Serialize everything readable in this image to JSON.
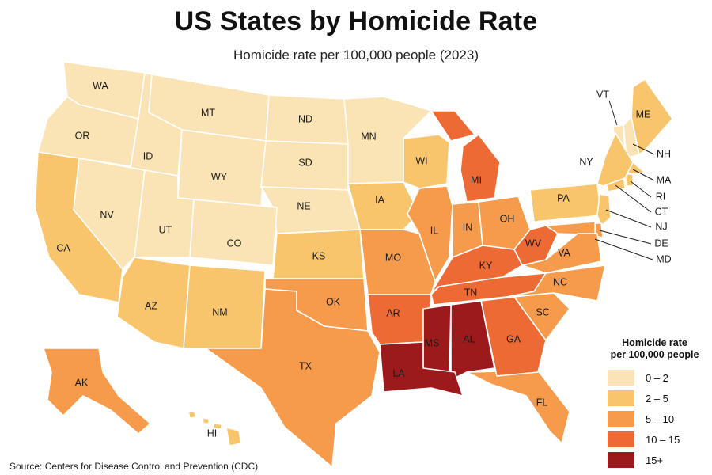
{
  "title": "US States by Homicide Rate",
  "subtitle": "Homicide rate per 100,000 people (2023)",
  "source": "Source: Centers for Disease Control and Prevention (CDC)",
  "legend": {
    "title_line1": "Homicide rate",
    "title_line2": "per 100,000 people",
    "bins": [
      {
        "label": "0 – 2",
        "color": "#fae3b4"
      },
      {
        "label": "2 – 5",
        "color": "#f8c56c"
      },
      {
        "label": "5 – 10",
        "color": "#f69b4b"
      },
      {
        "label": "10 – 15",
        "color": "#ee6a35"
      },
      {
        "label": "15+",
        "color": "#9c1a1c"
      }
    ]
  },
  "chart_data": {
    "type": "choropleth",
    "states": [
      {
        "code": "WA",
        "bin": 0
      },
      {
        "code": "OR",
        "bin": 0
      },
      {
        "code": "ID",
        "bin": 0
      },
      {
        "code": "MT",
        "bin": 0
      },
      {
        "code": "WY",
        "bin": 0
      },
      {
        "code": "ND",
        "bin": 0
      },
      {
        "code": "SD",
        "bin": 0
      },
      {
        "code": "NE",
        "bin": 0
      },
      {
        "code": "MN",
        "bin": 0
      },
      {
        "code": "NV",
        "bin": 0
      },
      {
        "code": "UT",
        "bin": 0
      },
      {
        "code": "CO",
        "bin": 0
      },
      {
        "code": "VT",
        "bin": 0
      },
      {
        "code": "NH",
        "bin": 0
      },
      {
        "code": "ME",
        "bin": 1
      },
      {
        "code": "MA",
        "bin": 1
      },
      {
        "code": "RI",
        "bin": 1
      },
      {
        "code": "CT",
        "bin": 1
      },
      {
        "code": "NY",
        "bin": 1
      },
      {
        "code": "PA",
        "bin": 1
      },
      {
        "code": "NJ",
        "bin": 1
      },
      {
        "code": "WI",
        "bin": 1
      },
      {
        "code": "IA",
        "bin": 1
      },
      {
        "code": "KS",
        "bin": 1
      },
      {
        "code": "AZ",
        "bin": 1
      },
      {
        "code": "NM",
        "bin": 1
      },
      {
        "code": "CA",
        "bin": 1
      },
      {
        "code": "HI",
        "bin": 1
      },
      {
        "code": "DE",
        "bin": 2
      },
      {
        "code": "MD",
        "bin": 2
      },
      {
        "code": "VA",
        "bin": 2
      },
      {
        "code": "NC",
        "bin": 2
      },
      {
        "code": "SC",
        "bin": 2
      },
      {
        "code": "FL",
        "bin": 2
      },
      {
        "code": "IN",
        "bin": 2
      },
      {
        "code": "OH",
        "bin": 2
      },
      {
        "code": "MO",
        "bin": 2
      },
      {
        "code": "IL",
        "bin": 2
      },
      {
        "code": "OK",
        "bin": 2
      },
      {
        "code": "TX",
        "bin": 2
      },
      {
        "code": "AK",
        "bin": 2
      },
      {
        "code": "MI",
        "bin": 3
      },
      {
        "code": "WV",
        "bin": 3
      },
      {
        "code": "KY",
        "bin": 3
      },
      {
        "code": "TN",
        "bin": 3
      },
      {
        "code": "AR",
        "bin": 3
      },
      {
        "code": "GA",
        "bin": 3
      },
      {
        "code": "AL",
        "bin": 4
      },
      {
        "code": "MS",
        "bin": 4
      },
      {
        "code": "LA",
        "bin": 4
      }
    ]
  }
}
